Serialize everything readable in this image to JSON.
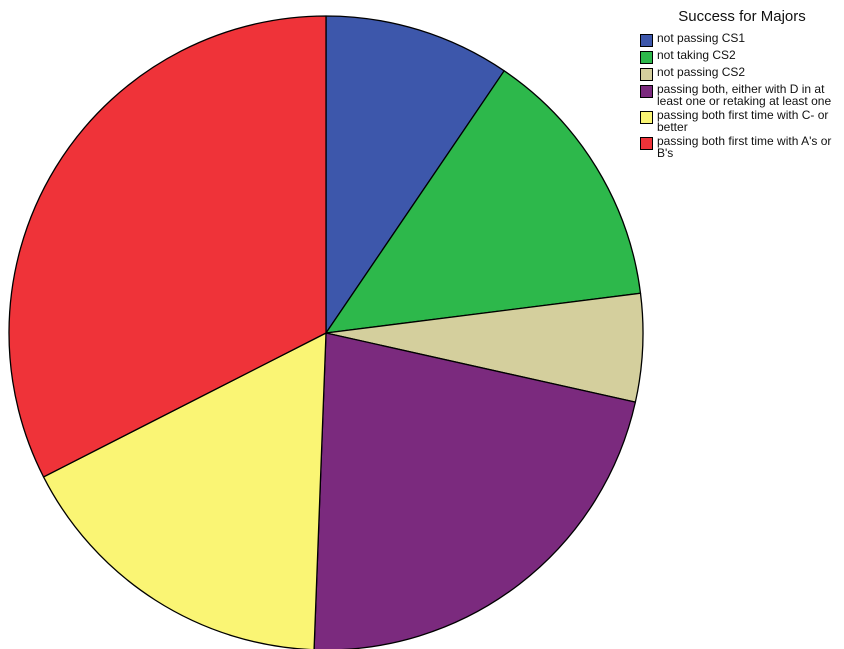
{
  "chart_data": {
    "type": "pie",
    "title": "Success for Majors",
    "legend_position": "top-right",
    "start_angle_deg": 0,
    "direction": "clockwise",
    "slices": [
      {
        "label": "not passing CS1",
        "value": 9.5,
        "color": "#3d57ab"
      },
      {
        "label": "not taking CS2",
        "value": 13.5,
        "color": "#2db84b"
      },
      {
        "label": "not passing CS2",
        "value": 5.5,
        "color": "#d4cf9d"
      },
      {
        "label": "passing both, either with D in at least one or retaking at least one",
        "value": 22.1,
        "color": "#7b2a7e"
      },
      {
        "label": "passing both first time with C- or better",
        "value": 16.9,
        "color": "#faf574"
      },
      {
        "label": "passing both first time with A's or B's",
        "value": 32.5,
        "color": "#ef3339"
      }
    ]
  }
}
